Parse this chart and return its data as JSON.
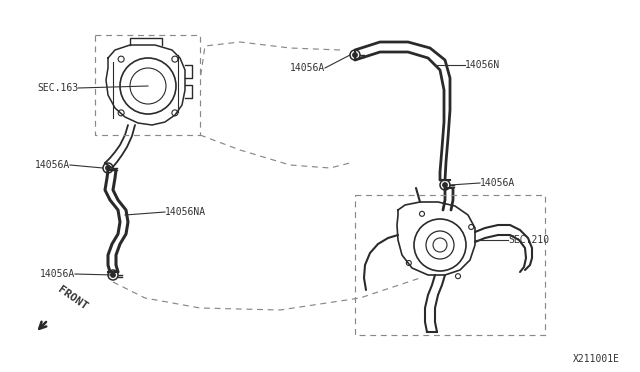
{
  "bg_color": "#ffffff",
  "line_color": "#2a2a2a",
  "dashed_color": "#888888",
  "label_color": "#333333",
  "diagram_id": "X211001E",
  "front_label": "FRONT",
  "labels": {
    "sec163": "SEC.163",
    "14056A_tb": "14056A",
    "14056NA": "14056NA",
    "14056A_bottom": "14056A",
    "14056A_top": "14056A",
    "14056N": "14056N",
    "14056A_mid": "14056A",
    "sec210": "SEC.210"
  },
  "figsize": [
    6.4,
    3.72
  ],
  "dpi": 100
}
